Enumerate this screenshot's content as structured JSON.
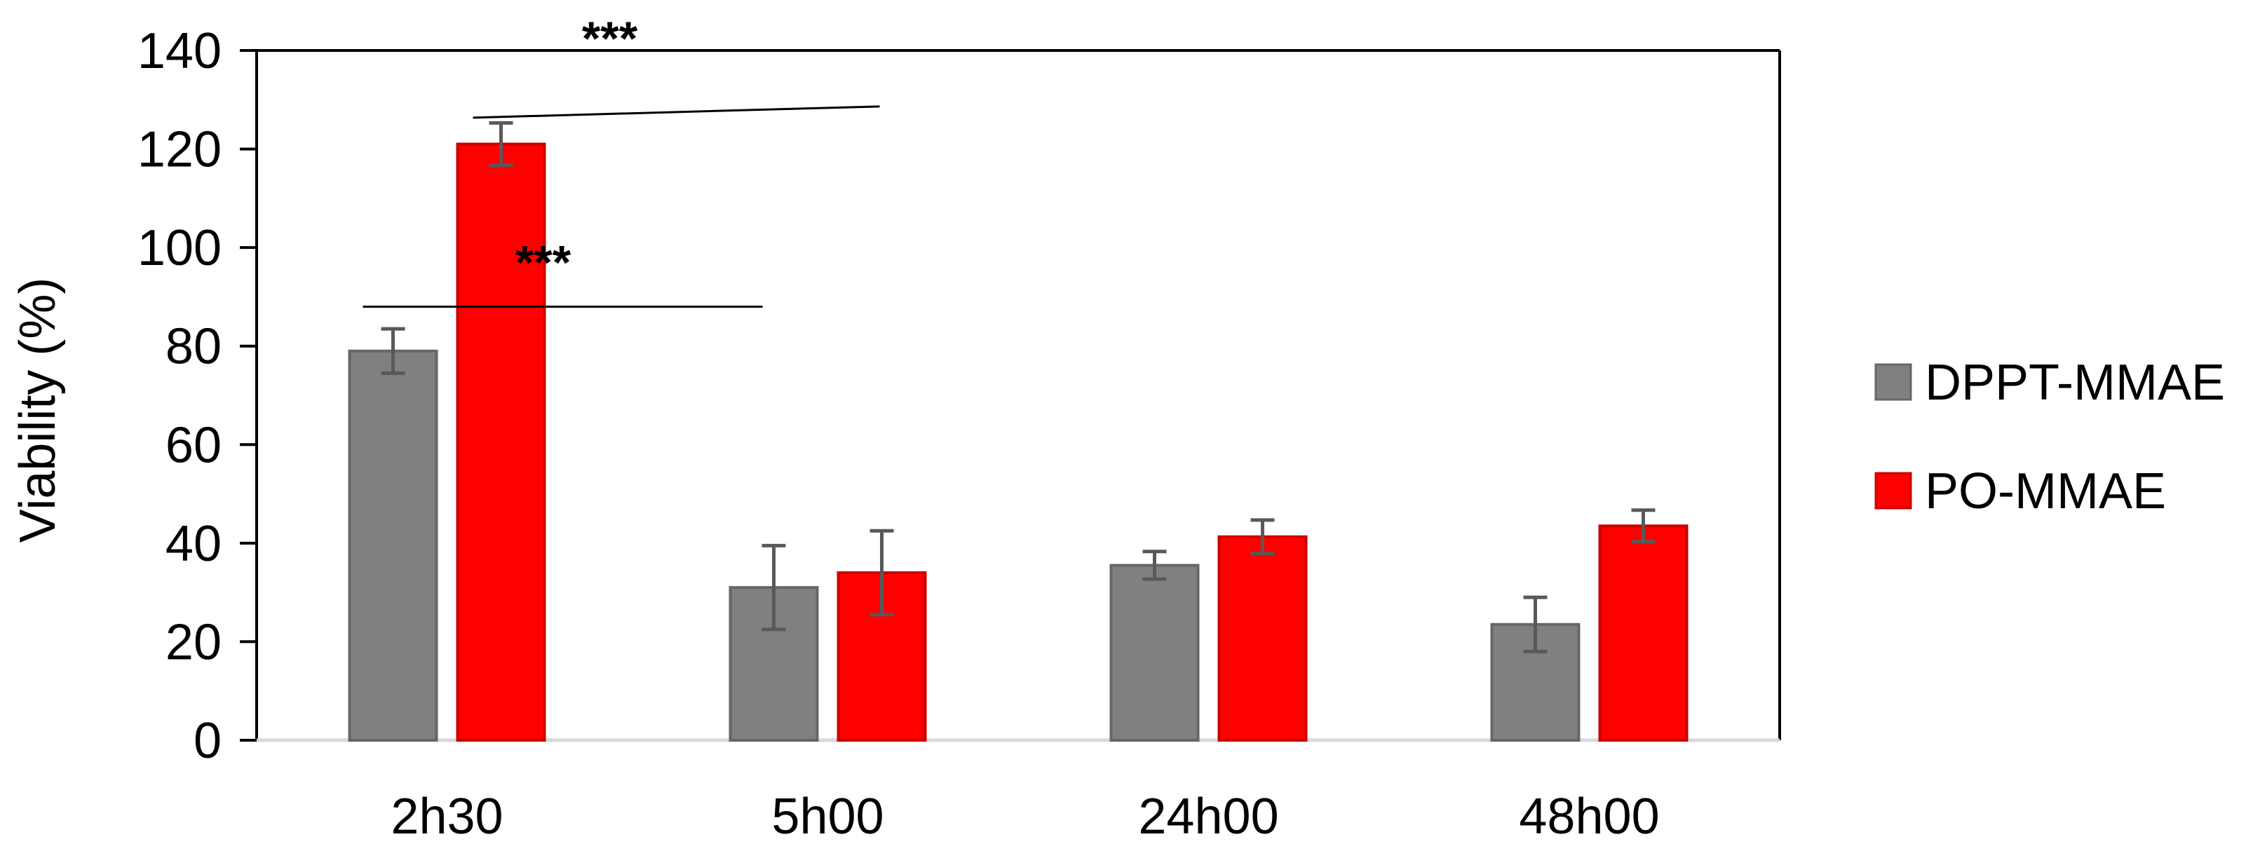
{
  "chart_data": {
    "type": "bar",
    "title": "",
    "xlabel": "",
    "ylabel": "Viability (%)",
    "ylim": [
      0,
      140
    ],
    "yticks": [
      0,
      20,
      40,
      60,
      80,
      100,
      120,
      140
    ],
    "grid": false,
    "legend_position": "right",
    "categories": [
      "2h30",
      "5h00",
      "24h00",
      "48h00"
    ],
    "series": [
      {
        "name": "DPPT-MMAE",
        "color": "#808080",
        "values": [
          79,
          31,
          35.5,
          23.5
        ],
        "errors": [
          4.5,
          8.5,
          2.8,
          5.5
        ]
      },
      {
        "name": "PO-MMAE",
        "color": "#ff0000",
        "values": [
          121,
          34,
          41.3,
          43.5
        ],
        "errors": [
          4.3,
          8.5,
          3.4,
          3.2
        ]
      }
    ],
    "annotations": [
      {
        "text": "***",
        "line_y": 88
      },
      {
        "text": "***",
        "line_y": 127.5
      }
    ]
  }
}
